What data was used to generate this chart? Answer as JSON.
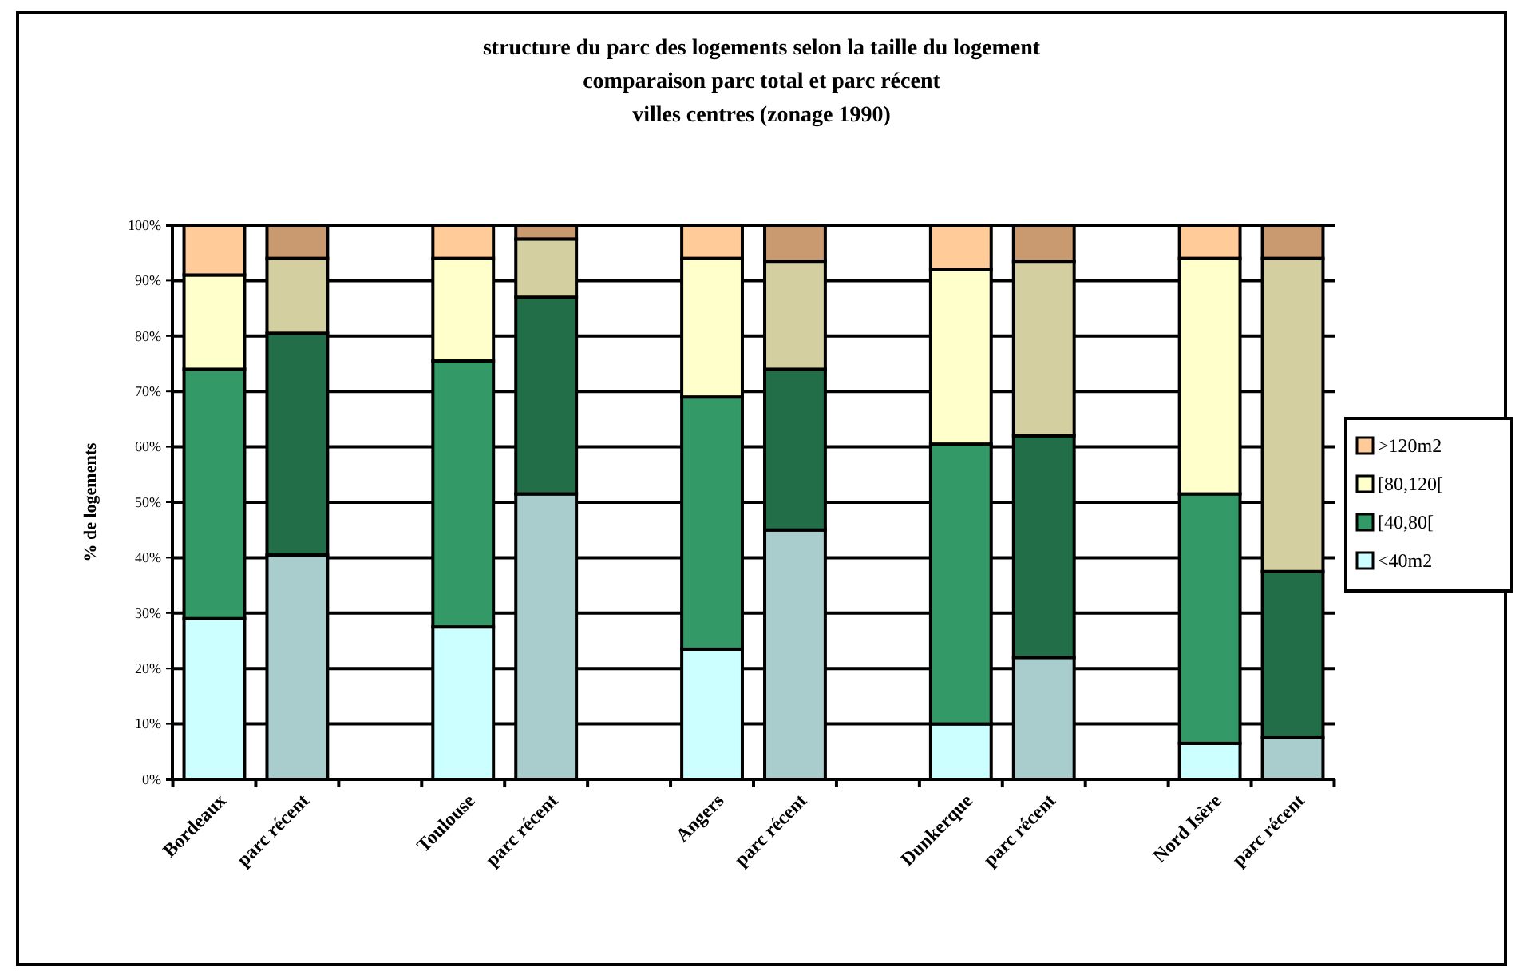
{
  "chart_data": {
    "type": "bar",
    "stacked": true,
    "title": "structure du parc des logements selon la taille du logement\ncomparaison parc total et parc récent\nvilles centres (zonage 1990)",
    "ylabel": "% de logements",
    "categories": [
      "Bordeaux",
      "parc récent",
      null,
      "Toulouse",
      "parc récent",
      null,
      "Angers",
      "parc récent",
      null,
      "Dunkerque",
      "parc récent",
      null,
      "Nord Isère",
      "parc récent"
    ],
    "series": [
      {
        "name": "<40m2",
        "color": "#ccffff",
        "colors": [
          "#ccffff",
          "#a9cccc",
          null,
          "#ccffff",
          "#a9cccc",
          null,
          "#ccffff",
          "#a9cccc",
          null,
          "#ccffff",
          "#a9cccc",
          null,
          "#ccffff",
          "#a9cccc"
        ],
        "values": [
          29,
          40.5,
          null,
          27.5,
          51.5,
          null,
          23.5,
          45,
          null,
          10,
          22,
          null,
          6.5,
          7.5
        ]
      },
      {
        "name": "[40,80[",
        "color": "#339966",
        "colors": [
          "#339966",
          "#226e48",
          null,
          "#339966",
          "#226e48",
          null,
          "#339966",
          "#226e48",
          null,
          "#339966",
          "#226e48",
          null,
          "#339966",
          "#226e48"
        ],
        "values": [
          45,
          40,
          null,
          48,
          35.5,
          null,
          45.5,
          29,
          null,
          50.5,
          40,
          null,
          45,
          30
        ]
      },
      {
        "name": "[80,120[",
        "color": "#ffffcc",
        "colors": [
          "#ffffcc",
          "#d4cfa0",
          null,
          "#ffffcc",
          "#d4cfa0",
          null,
          "#ffffcc",
          "#d4cfa0",
          null,
          "#ffffcc",
          "#d4cfa0",
          null,
          "#ffffcc",
          "#d4cfa0"
        ],
        "values": [
          17,
          13.5,
          null,
          18.5,
          10.5,
          null,
          25,
          19.5,
          null,
          31.5,
          31.5,
          null,
          42.5,
          56.5
        ]
      },
      {
        "name": ">120m2",
        "color": "#ffcc99",
        "colors": [
          "#ffcc99",
          "#c99a70",
          null,
          "#ffcc99",
          "#c99a70",
          null,
          "#ffcc99",
          "#c99a70",
          null,
          "#ffcc99",
          "#c99a70",
          null,
          "#ffcc99",
          "#c99a70"
        ],
        "values": [
          9,
          6,
          null,
          6,
          2.5,
          null,
          6,
          6.5,
          null,
          8,
          6.5,
          null,
          6,
          6
        ]
      }
    ],
    "ylim": [
      0,
      100
    ],
    "yticks": [
      {
        "value": 0,
        "label": "0%"
      },
      {
        "value": 10,
        "label": "10%"
      },
      {
        "value": 20,
        "label": "20%"
      },
      {
        "value": 30,
        "label": "30%"
      },
      {
        "value": 40,
        "label": "40%"
      },
      {
        "value": 50,
        "label": "50%"
      },
      {
        "value": 60,
        "label": "60%"
      },
      {
        "value": 70,
        "label": "70%"
      },
      {
        "value": 80,
        "label": "80%"
      },
      {
        "value": 90,
        "label": "90%"
      },
      {
        "value": 100,
        "label": "100%"
      }
    ],
    "grid": "y",
    "legend": "right"
  }
}
